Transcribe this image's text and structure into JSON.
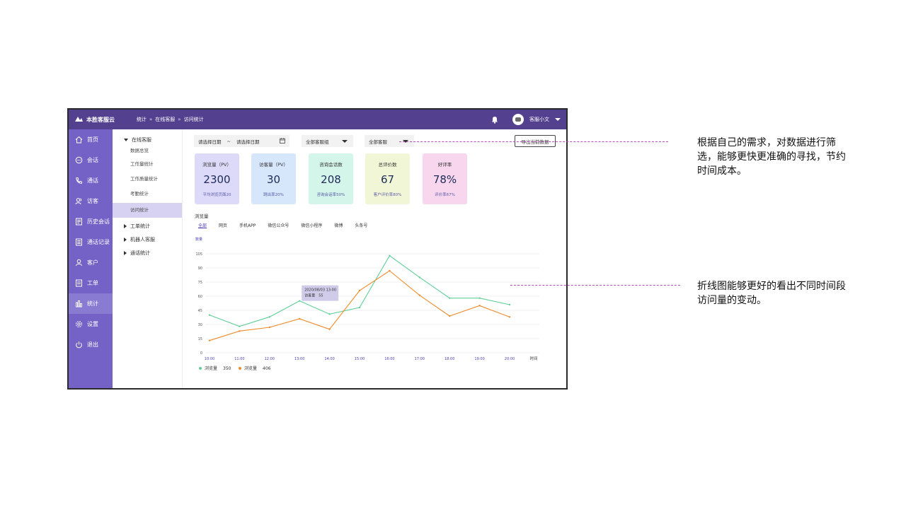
{
  "app": {
    "logo_text": "本胜客服云",
    "breadcrumb": [
      "统计",
      "在线客服",
      "访问统计"
    ],
    "breadcrumb_sep": "»",
    "user_name": "客服小文"
  },
  "sidebar": {
    "items": [
      {
        "label": "首页",
        "icon": "home-icon"
      },
      {
        "label": "会话",
        "icon": "chat-icon"
      },
      {
        "label": "通话",
        "icon": "phone-icon"
      },
      {
        "label": "访客",
        "icon": "visitors-icon"
      },
      {
        "label": "历史会话",
        "icon": "history-icon"
      },
      {
        "label": "通话记录",
        "icon": "call-log-icon"
      },
      {
        "label": "客户",
        "icon": "customer-icon"
      },
      {
        "label": "工单",
        "icon": "ticket-icon"
      },
      {
        "label": "统计",
        "icon": "bar-chart-icon"
      },
      {
        "label": "设置",
        "icon": "settings-icon"
      },
      {
        "label": "退出",
        "icon": "power-icon"
      }
    ],
    "active_index": 8
  },
  "subnav": {
    "group_online": "在线客服",
    "online_items": [
      "数据总览",
      "工作量统计",
      "工作质量统计",
      "考勤统计",
      "访问统计"
    ],
    "group_ticket": "工单统计",
    "group_robot": "机器人客服",
    "group_call": "通话统计"
  },
  "filters": {
    "date_start": "请选择日期",
    "date_sep": "~",
    "date_end": "请选择日期",
    "group_select": "全部客服组",
    "agent_select": "全部客服",
    "export_label": "导出当前数据"
  },
  "cards": [
    {
      "title": "浏览量（PV）",
      "value": "2300",
      "sub": "平均浏览页面20",
      "color": "#dcdaf8"
    },
    {
      "title": "访客量（PV）",
      "value": "30",
      "sub": "跳出率20%",
      "color": "#d6e6fb"
    },
    {
      "title": "咨询会话数",
      "value": "208",
      "sub": "咨询会话率50%",
      "color": "#d4f5ea"
    },
    {
      "title": "总评价数",
      "value": "67",
      "sub": "客户评价率80%",
      "color": "#f1f7d6"
    },
    {
      "title": "好评率",
      "value": "78%",
      "sub": "评价率67%",
      "color": "#f8d7ee"
    }
  ],
  "chart_section": {
    "title": "浏览量",
    "tabs": [
      "全部",
      "网页",
      "手机APP",
      "微信公众号",
      "微信小程序",
      "微博",
      "头条号"
    ],
    "active_tab": 0
  },
  "chart_data": {
    "type": "line",
    "ylabel": "数量",
    "xlabel": "时间",
    "categories": [
      "10:00",
      "11:00",
      "12:00",
      "13:00",
      "14:00",
      "15:00",
      "16:00",
      "17:00",
      "18:00",
      "19:00",
      "20:00"
    ],
    "ylim": [
      0,
      105
    ],
    "yticks": [
      0,
      15,
      30,
      45,
      60,
      75,
      90,
      105
    ],
    "grid": true,
    "series": [
      {
        "name": "浏览量",
        "color": "#5fcf96",
        "values": [
          40,
          28,
          38,
          55,
          41,
          48,
          103,
          80,
          58,
          58,
          51
        ],
        "legend_value": "350"
      },
      {
        "name": "浏览量",
        "color": "#f08a2a",
        "values": [
          13,
          23,
          27,
          36,
          25,
          66,
          87,
          61,
          39,
          50,
          38
        ],
        "legend_value": "406"
      }
    ],
    "tooltip": {
      "time": "2020/08/03 13:00",
      "label": "访客量",
      "value": "55"
    }
  },
  "annotations": [
    {
      "text": "根据自己的需求，对数据进行筛选，能够更快更准确的寻找，节约时间成本。"
    },
    {
      "text": "折线图能够更好的看出不同时间段访问量的变动。"
    }
  ]
}
